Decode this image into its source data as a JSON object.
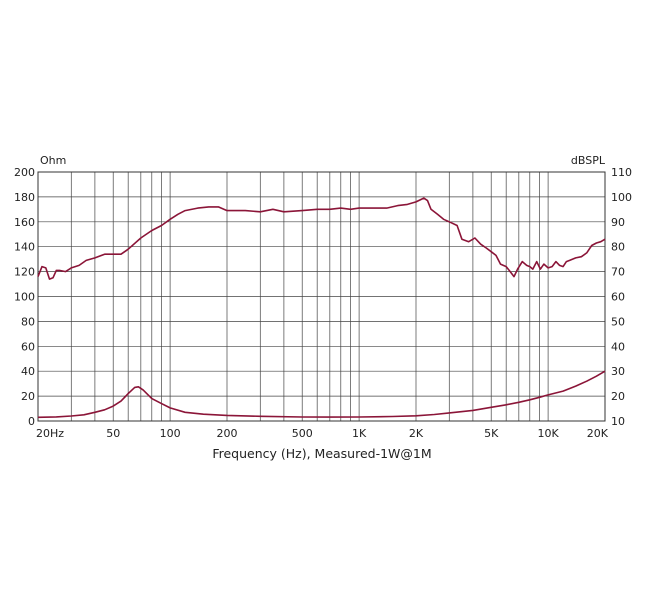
{
  "chart_data": {
    "type": "line",
    "xlabel": "Frequency (Hz), Measured-1W@1M",
    "xscale": "log",
    "xlim": [
      20,
      20000
    ],
    "x_ticks": [
      20,
      50,
      100,
      200,
      500,
      1000,
      2000,
      5000,
      10000,
      20000
    ],
    "x_tick_labels": [
      "20Hz",
      "50",
      "100",
      "200",
      "500",
      "1K",
      "2K",
      "5K",
      "10K",
      "20K"
    ],
    "left_axis": {
      "unit_label": "Ohm",
      "lim": [
        0,
        200
      ],
      "ticks": [
        0,
        20,
        40,
        60,
        80,
        100,
        120,
        140,
        160,
        180,
        200
      ]
    },
    "right_axis": {
      "unit_label": "dBSPL",
      "lim": [
        10,
        110
      ],
      "ticks": [
        10,
        20,
        30,
        40,
        50,
        60,
        70,
        80,
        90,
        100,
        110
      ]
    },
    "grid": true,
    "line_color": "#8b1538",
    "series": [
      {
        "axis": "right",
        "points": [
          [
            20,
            68
          ],
          [
            21,
            72
          ],
          [
            22,
            71.5
          ],
          [
            23,
            67
          ],
          [
            24,
            67.5
          ],
          [
            25,
            70.5
          ],
          [
            26,
            70.5
          ],
          [
            28,
            70
          ],
          [
            30,
            71.5
          ],
          [
            33,
            72.5
          ],
          [
            36,
            74.5
          ],
          [
            40,
            75.5
          ],
          [
            45,
            77
          ],
          [
            50,
            77
          ],
          [
            55,
            77
          ],
          [
            60,
            79
          ],
          [
            70,
            83.5
          ],
          [
            80,
            86.5
          ],
          [
            90,
            88.5
          ],
          [
            100,
            91
          ],
          [
            110,
            93
          ],
          [
            120,
            94.5
          ],
          [
            140,
            95.5
          ],
          [
            160,
            96
          ],
          [
            180,
            96
          ],
          [
            200,
            94.5
          ],
          [
            250,
            94.5
          ],
          [
            300,
            94
          ],
          [
            350,
            95
          ],
          [
            400,
            94
          ],
          [
            500,
            94.5
          ],
          [
            600,
            95
          ],
          [
            700,
            95
          ],
          [
            800,
            95.5
          ],
          [
            900,
            95
          ],
          [
            1000,
            95.5
          ],
          [
            1200,
            95.5
          ],
          [
            1400,
            95.5
          ],
          [
            1600,
            96.5
          ],
          [
            1800,
            97
          ],
          [
            2000,
            98
          ],
          [
            2200,
            99.5
          ],
          [
            2300,
            98.5
          ],
          [
            2400,
            95
          ],
          [
            2600,
            93
          ],
          [
            2800,
            91
          ],
          [
            3000,
            90
          ],
          [
            3300,
            88.5
          ],
          [
            3500,
            83
          ],
          [
            3800,
            82
          ],
          [
            4100,
            83.5
          ],
          [
            4400,
            81
          ],
          [
            4700,
            79.5
          ],
          [
            5000,
            78
          ],
          [
            5300,
            76.5
          ],
          [
            5600,
            73
          ],
          [
            6000,
            72
          ],
          [
            6300,
            70
          ],
          [
            6600,
            68
          ],
          [
            6900,
            71
          ],
          [
            7300,
            74
          ],
          [
            7700,
            72.5
          ],
          [
            8000,
            72
          ],
          [
            8300,
            71
          ],
          [
            8700,
            74
          ],
          [
            9100,
            71
          ],
          [
            9500,
            73
          ],
          [
            10000,
            71.5
          ],
          [
            10500,
            72
          ],
          [
            11000,
            74
          ],
          [
            11500,
            72.5
          ],
          [
            12000,
            72
          ],
          [
            12500,
            74
          ],
          [
            13000,
            74.5
          ],
          [
            14000,
            75.5
          ],
          [
            15000,
            76
          ],
          [
            16000,
            77.5
          ],
          [
            17000,
            80.5
          ],
          [
            18000,
            81.5
          ],
          [
            19000,
            82
          ],
          [
            20000,
            83
          ]
        ]
      },
      {
        "axis": "left",
        "points": [
          [
            20,
            3
          ],
          [
            25,
            3.3
          ],
          [
            30,
            4
          ],
          [
            35,
            5
          ],
          [
            40,
            7
          ],
          [
            45,
            9
          ],
          [
            50,
            12
          ],
          [
            55,
            16
          ],
          [
            60,
            22
          ],
          [
            65,
            27
          ],
          [
            68,
            27.5
          ],
          [
            72,
            25
          ],
          [
            80,
            18
          ],
          [
            90,
            14
          ],
          [
            100,
            10.5
          ],
          [
            120,
            7
          ],
          [
            150,
            5.5
          ],
          [
            200,
            4.5
          ],
          [
            300,
            3.8
          ],
          [
            500,
            3.2
          ],
          [
            700,
            3.1
          ],
          [
            1000,
            3.2
          ],
          [
            1500,
            3.6
          ],
          [
            2000,
            4.2
          ],
          [
            2500,
            5.2
          ],
          [
            3000,
            6.5
          ],
          [
            4000,
            8.5
          ],
          [
            5000,
            11
          ],
          [
            6000,
            13
          ],
          [
            7000,
            15
          ],
          [
            8000,
            17
          ],
          [
            9000,
            19
          ],
          [
            10000,
            21
          ],
          [
            12000,
            24
          ],
          [
            14000,
            28
          ],
          [
            16000,
            32
          ],
          [
            18000,
            36
          ],
          [
            20000,
            40
          ]
        ]
      }
    ]
  }
}
